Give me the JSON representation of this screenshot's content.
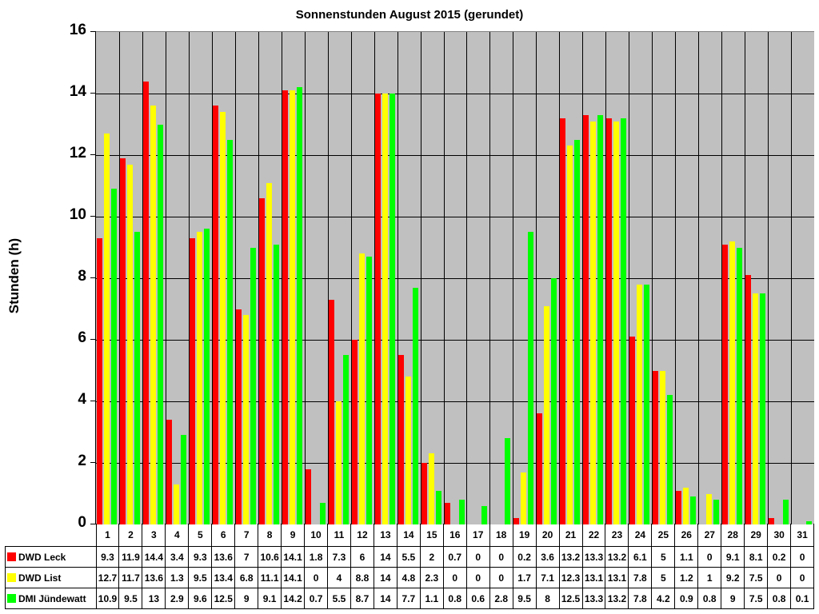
{
  "chart_data": {
    "type": "bar",
    "title": "Sonnenstunden August 2015 (gerundet)",
    "xlabel": "",
    "ylabel": "Stunden (h)",
    "ylim": [
      0,
      16
    ],
    "yticks": [
      0,
      2,
      4,
      6,
      8,
      10,
      12,
      14,
      16
    ],
    "grid": true,
    "legend_position": "data-table-bottom",
    "categories": [
      "1",
      "2",
      "3",
      "4",
      "5",
      "6",
      "7",
      "8",
      "9",
      "10",
      "11",
      "12",
      "13",
      "14",
      "15",
      "16",
      "17",
      "18",
      "19",
      "20",
      "21",
      "22",
      "23",
      "24",
      "25",
      "26",
      "27",
      "28",
      "29",
      "30",
      "31"
    ],
    "series": [
      {
        "name": "DWD Leck",
        "color": "#ff0000",
        "values": [
          9.3,
          11.9,
          14.4,
          3.4,
          9.3,
          13.6,
          7,
          10.6,
          14.1,
          1.8,
          7.3,
          6,
          14,
          5.5,
          2,
          0.7,
          0,
          0,
          0.2,
          3.6,
          13.2,
          13.3,
          13.2,
          6.1,
          5,
          1.1,
          0,
          9.1,
          8.1,
          0.2,
          0
        ]
      },
      {
        "name": "DWD List",
        "color": "#ffff00",
        "values": [
          12.7,
          11.7,
          13.6,
          1.3,
          9.5,
          13.4,
          6.8,
          11.1,
          14.1,
          0,
          4,
          8.8,
          14,
          4.8,
          2.3,
          0,
          0,
          0,
          1.7,
          7.1,
          12.3,
          13.1,
          13.1,
          7.8,
          5,
          1.2,
          1,
          9.2,
          7.5,
          0,
          0
        ]
      },
      {
        "name": "DMI Jündewatt",
        "color": "#00ff00",
        "values": [
          10.9,
          9.5,
          13,
          2.9,
          9.6,
          12.5,
          9,
          9.1,
          14.2,
          0.7,
          5.5,
          8.7,
          14,
          7.7,
          1.1,
          0.8,
          0.6,
          2.8,
          9.5,
          8,
          12.5,
          13.3,
          13.2,
          7.8,
          4.2,
          0.9,
          0.8,
          9,
          7.5,
          0.8,
          0.1
        ]
      }
    ]
  }
}
